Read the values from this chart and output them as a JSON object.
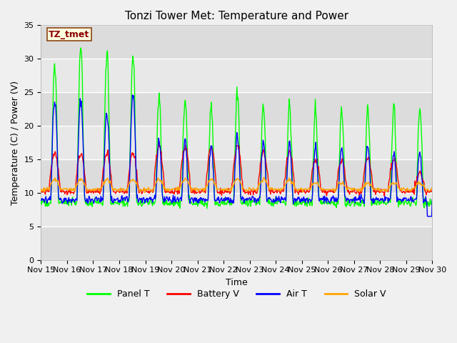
{
  "title": "Tonzi Tower Met: Temperature and Power",
  "xlabel": "Time",
  "ylabel": "Temperature (C) / Power (V)",
  "annotation": "TZ_tmet",
  "ylim": [
    0,
    35
  ],
  "yticks": [
    0,
    5,
    10,
    15,
    20,
    25,
    30,
    35
  ],
  "x_labels": [
    "Nov 15",
    "Nov 16",
    "Nov 17",
    "Nov 18",
    "Nov 19",
    "Nov 20",
    "Nov 21",
    "Nov 22",
    "Nov 23",
    "Nov 24",
    "Nov 25",
    "Nov 26",
    "Nov 27",
    "Nov 28",
    "Nov 29",
    "Nov 30"
  ],
  "colors": {
    "panel_t": "#00FF00",
    "battery_v": "#FF0000",
    "air_t": "#0000FF",
    "solar_v": "#FFA500"
  },
  "legend": [
    "Panel T",
    "Battery V",
    "Air T",
    "Solar V"
  ],
  "fig_bg": "#F0F0F0",
  "plot_bg": "#E8E8E8",
  "band_light": "#EBEBEB",
  "band_dark": "#DCDCDC",
  "title_fontsize": 11,
  "axis_fontsize": 9,
  "tick_fontsize": 8
}
